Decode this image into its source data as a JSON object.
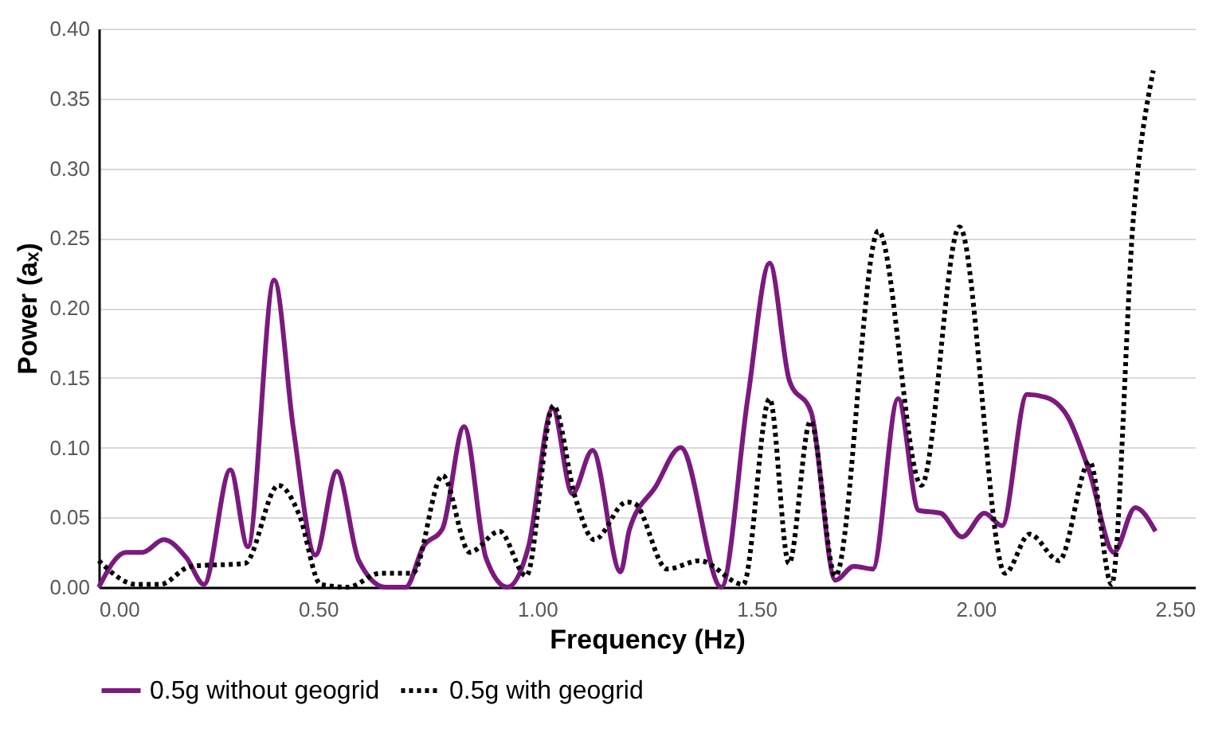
{
  "chart_data": {
    "type": "line",
    "xlabel": "Frequency (Hz)",
    "ylabel": "Power (aₓ)",
    "xlim": [
      0,
      2.5
    ],
    "xticks": [
      {
        "value": 0,
        "label": "0.00"
      },
      {
        "value": 0.5,
        "label": "0.50"
      },
      {
        "value": 1,
        "label": "1.00"
      },
      {
        "value": 1.5,
        "label": "1.50"
      },
      {
        "value": 2,
        "label": "2.00"
      },
      {
        "value": 2.5,
        "label": "2.50"
      }
    ],
    "ylim": [
      0,
      0.4
    ],
    "yticks": [
      {
        "value": 0,
        "label": "0.00"
      },
      {
        "value": 0.05,
        "label": "0.05"
      },
      {
        "value": 0.1,
        "label": "0.10"
      },
      {
        "value": 0.15,
        "label": "0.15"
      },
      {
        "value": 0.2,
        "label": "0.20"
      },
      {
        "value": 0.25,
        "label": "0.25"
      },
      {
        "value": 0.3,
        "label": "0.30"
      },
      {
        "value": 0.35,
        "label": "0.35"
      },
      {
        "value": 0.4,
        "label": "0.40"
      }
    ],
    "grid": "y",
    "legend": "bottom",
    "marker": "none",
    "series": [
      {
        "name": "0.5g without geogrid",
        "color": "#7b1a7e",
        "line_style": "solid",
        "x": [
          0,
          0.062,
          0.1,
          0.148,
          0.2,
          0.24,
          0.3,
          0.34,
          0.4,
          0.444,
          0.494,
          0.543,
          0.593,
          0.654,
          0.7,
          0.74,
          0.784,
          0.833,
          0.883,
          0.932,
          0.98,
          1.035,
          1.08,
          1.126,
          1.19,
          1.21,
          1.27,
          1.327,
          1.42,
          1.48,
          1.53,
          1.575,
          1.625,
          1.68,
          1.722,
          1.765,
          1.823,
          1.87,
          1.92,
          1.969,
          2.02,
          2.06,
          2.117,
          2.16,
          2.21,
          2.26,
          2.315,
          2.364,
          2.41
        ],
        "values": [
          0,
          0.025,
          0.025,
          0.034,
          0.021,
          0.002,
          0.084,
          0.029,
          0.22,
          0.113,
          0.023,
          0.083,
          0.019,
          0,
          0,
          0.029,
          0.042,
          0.115,
          0.021,
          0,
          0.029,
          0.128,
          0.067,
          0.098,
          0.011,
          0.041,
          0.072,
          0.1,
          0,
          0.135,
          0.232,
          0.148,
          0.125,
          0.005,
          0.015,
          0.013,
          0.135,
          0.055,
          0.053,
          0.036,
          0.053,
          0.044,
          0.138,
          0.136,
          0.122,
          0.082,
          0.025,
          0.057,
          0.04
        ]
      },
      {
        "name": "0.5g with geogrid",
        "color": "#000000",
        "line_style": "dotted",
        "x": [
          0,
          0.086,
          0.14,
          0.21,
          0.333,
          0.41,
          0.457,
          0.506,
          0.568,
          0.642,
          0.716,
          0.784,
          0.846,
          0.914,
          0.975,
          1.037,
          1.086,
          1.13,
          1.204,
          1.222,
          1.296,
          1.37,
          1.47,
          1.53,
          1.574,
          1.623,
          1.68,
          1.778,
          1.876,
          1.963,
          2.067,
          2.123,
          2.19,
          2.26,
          2.31,
          2.36,
          2.405
        ],
        "values": [
          0.019,
          0.002,
          0.002,
          0.015,
          0.017,
          0.073,
          0.052,
          0.002,
          0,
          0.01,
          0.01,
          0.08,
          0.025,
          0.04,
          0.008,
          0.13,
          0.065,
          0.034,
          0.061,
          0.06,
          0.013,
          0.019,
          0.002,
          0.135,
          0.017,
          0.119,
          0.008,
          0.255,
          0.073,
          0.258,
          0.01,
          0.038,
          0.019,
          0.09,
          0.002,
          0.266,
          0.37
        ]
      }
    ]
  }
}
